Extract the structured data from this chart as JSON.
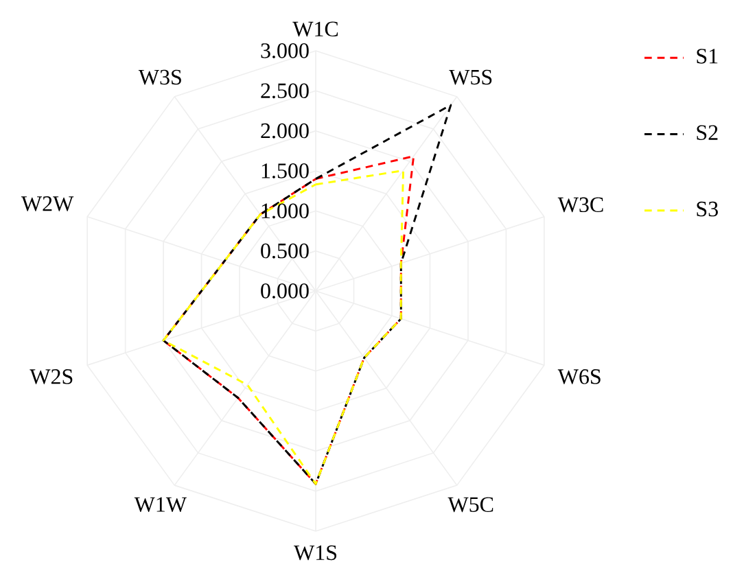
{
  "chart_data": {
    "type": "radar",
    "categories": [
      "W1C",
      "W5S",
      "W3C",
      "W6S",
      "W5C",
      "W1S",
      "W1W",
      "W2S",
      "W2W",
      "W3S"
    ],
    "series": [
      {
        "name": "S1",
        "color": "#ff0000",
        "values": [
          1.4,
          2.08,
          1.12,
          1.12,
          1.03,
          2.41,
          1.65,
          2.0,
          1.2,
          1.18
        ]
      },
      {
        "name": "S2",
        "color": "#000000",
        "values": [
          1.4,
          2.87,
          1.12,
          1.12,
          1.03,
          2.41,
          1.65,
          2.0,
          1.2,
          1.18
        ]
      },
      {
        "name": "S3",
        "color": "#ffff00",
        "values": [
          1.33,
          1.86,
          1.12,
          1.12,
          1.03,
          2.41,
          1.45,
          2.0,
          1.2,
          1.18
        ]
      }
    ],
    "ylim": [
      0,
      3
    ],
    "yticks": [
      {
        "value": 0,
        "label": "0.000"
      },
      {
        "value": 0.5,
        "label": "0.500"
      },
      {
        "value": 1,
        "label": "1.000"
      },
      {
        "value": 1.5,
        "label": "1.500"
      },
      {
        "value": 2,
        "label": "2.000"
      },
      {
        "value": 2.5,
        "label": "2.500"
      },
      {
        "value": 3,
        "label": "3.000"
      }
    ],
    "grid": true,
    "legend": "right",
    "marker": "none",
    "line_style": "dashed"
  }
}
